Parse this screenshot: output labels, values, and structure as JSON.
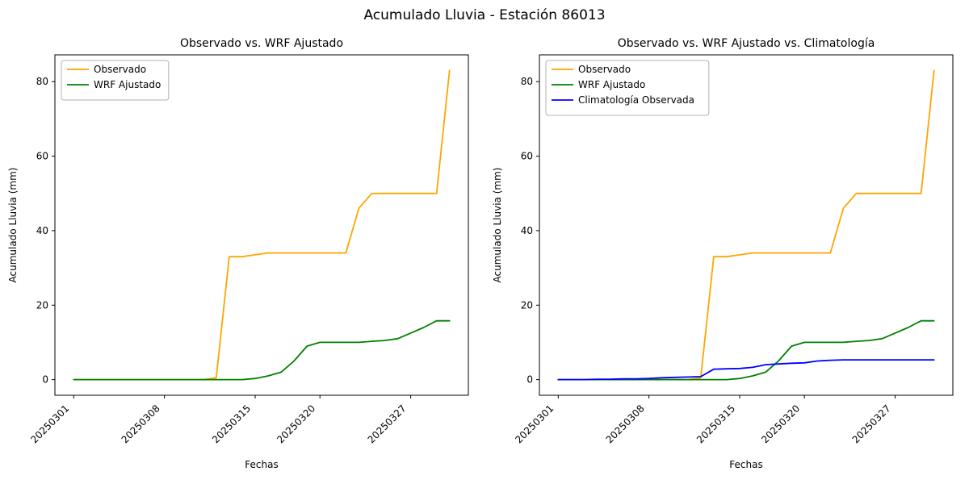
{
  "figure": {
    "suptitle": "Acumulado Lluvia - Estación 86013",
    "background": "#ffffff",
    "axes_color": "#000000",
    "legend_border": "#b0b0b0"
  },
  "chart_data": [
    {
      "type": "line",
      "title": "Observado vs. WRF Ajustado",
      "xlabel": "Fechas",
      "ylabel": "Acumulado Lluvia (mm)",
      "ylim": [
        -4.2,
        87.2
      ],
      "yticks": [
        0,
        20,
        40,
        60,
        80
      ],
      "legend_position": "upper left",
      "grid": false,
      "x_dates": [
        "20250301",
        "20250302",
        "20250303",
        "20250304",
        "20250305",
        "20250306",
        "20250307",
        "20250308",
        "20250309",
        "20250310",
        "20250311",
        "20250312",
        "20250313",
        "20250314",
        "20250315",
        "20250316",
        "20250317",
        "20250318",
        "20250319",
        "20250320",
        "20250321",
        "20250322",
        "20250323",
        "20250324",
        "20250325",
        "20250326",
        "20250327",
        "20250328",
        "20250329",
        "20250330"
      ],
      "xtick_indices": [
        0,
        7,
        14,
        19,
        26
      ],
      "xtick_labels": [
        "20250301",
        "20250308",
        "20250315",
        "20250320",
        "20250327"
      ],
      "series": [
        {
          "name": "Observado",
          "color": "#FFA500",
          "values": [
            0,
            0,
            0,
            0,
            0,
            0,
            0,
            0,
            0,
            0,
            0,
            0.5,
            33,
            33,
            33.5,
            34,
            34,
            34,
            34,
            34,
            34,
            34,
            46,
            50,
            50,
            50,
            50,
            50,
            50,
            83
          ]
        },
        {
          "name": "WRF Ajustado",
          "color": "#008000",
          "values": [
            0,
            0,
            0,
            0,
            0,
            0,
            0,
            0,
            0,
            0,
            0,
            0,
            0,
            0,
            0.3,
            1,
            2,
            5,
            9,
            10,
            10,
            10,
            10,
            10.3,
            10.5,
            11,
            12.5,
            14,
            15.8,
            15.8
          ]
        }
      ]
    },
    {
      "type": "line",
      "title": "Observado vs. WRF Ajustado vs. Climatología",
      "xlabel": "Fechas",
      "ylabel": "Acumulado Lluvia (mm)",
      "ylim": [
        -4.2,
        87.2
      ],
      "yticks": [
        0,
        20,
        40,
        60,
        80
      ],
      "legend_position": "upper left",
      "grid": false,
      "x_dates": [
        "20250301",
        "20250302",
        "20250303",
        "20250304",
        "20250305",
        "20250306",
        "20250307",
        "20250308",
        "20250309",
        "20250310",
        "20250311",
        "20250312",
        "20250313",
        "20250314",
        "20250315",
        "20250316",
        "20250317",
        "20250318",
        "20250319",
        "20250320",
        "20250321",
        "20250322",
        "20250323",
        "20250324",
        "20250325",
        "20250326",
        "20250327",
        "20250328",
        "20250329",
        "20250330"
      ],
      "xtick_indices": [
        0,
        7,
        14,
        19,
        26
      ],
      "xtick_labels": [
        "20250301",
        "20250308",
        "20250315",
        "20250320",
        "20250327"
      ],
      "series": [
        {
          "name": "Observado",
          "color": "#FFA500",
          "values": [
            0,
            0,
            0,
            0,
            0,
            0,
            0,
            0,
            0,
            0,
            0,
            0.5,
            33,
            33,
            33.5,
            34,
            34,
            34,
            34,
            34,
            34,
            34,
            46,
            50,
            50,
            50,
            50,
            50,
            50,
            83
          ]
        },
        {
          "name": "WRF Ajustado",
          "color": "#008000",
          "values": [
            0,
            0,
            0,
            0,
            0,
            0,
            0,
            0,
            0,
            0,
            0,
            0,
            0,
            0,
            0.3,
            1,
            2,
            5,
            9,
            10,
            10,
            10,
            10,
            10.3,
            10.5,
            11,
            12.5,
            14,
            15.8,
            15.8
          ]
        },
        {
          "name": "Climatología Observada",
          "color": "#0000FF",
          "values": [
            0,
            0,
            0,
            0.1,
            0.1,
            0.2,
            0.2,
            0.3,
            0.5,
            0.6,
            0.7,
            0.8,
            2.8,
            2.9,
            3.0,
            3.3,
            4.0,
            4.2,
            4.4,
            4.5,
            5.0,
            5.2,
            5.3,
            5.3,
            5.3,
            5.3,
            5.3,
            5.3,
            5.3,
            5.3
          ]
        }
      ]
    }
  ]
}
